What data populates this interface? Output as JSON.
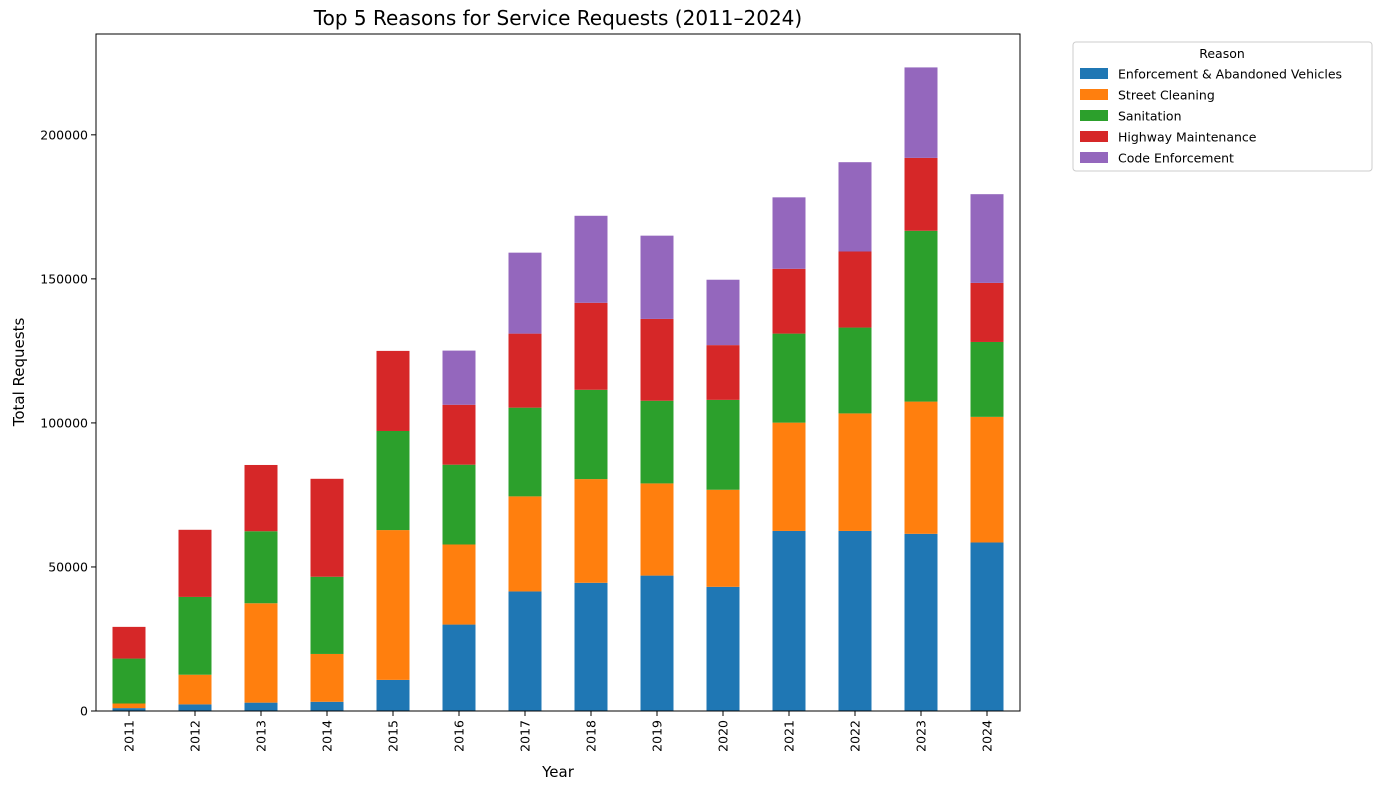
{
  "chart_data": {
    "type": "bar",
    "stacked": true,
    "title": "Top 5 Reasons for Service Requests (2011–2024)",
    "xlabel": "Year",
    "ylabel": "Total Requests",
    "ylim": [
      0,
      235000
    ],
    "yticks": [
      0,
      50000,
      100000,
      150000,
      200000
    ],
    "grid": false,
    "legend_title": "Reason",
    "legend_position": "outside-top-right",
    "categories": [
      "2011",
      "2012",
      "2013",
      "2014",
      "2015",
      "2016",
      "2017",
      "2018",
      "2019",
      "2020",
      "2021",
      "2022",
      "2023",
      "2024"
    ],
    "series": [
      {
        "name": "Enforcement & Abandoned Vehicles",
        "color": "#1f77b4",
        "values": [
          1000,
          2300,
          2900,
          3200,
          10800,
          30000,
          41500,
          44500,
          47000,
          43100,
          62500,
          62500,
          61500,
          58500
        ]
      },
      {
        "name": "Street Cleaning",
        "color": "#ff7f0e",
        "values": [
          1600,
          10300,
          34500,
          16600,
          52000,
          27800,
          33000,
          36000,
          32000,
          33700,
          37600,
          40800,
          45900,
          43600
        ]
      },
      {
        "name": "Sanitation",
        "color": "#2ca02c",
        "values": [
          15600,
          27000,
          25000,
          26800,
          34400,
          27700,
          30800,
          31000,
          28700,
          31200,
          30900,
          29800,
          59300,
          26000
        ]
      },
      {
        "name": "Highway Maintenance",
        "color": "#d62728",
        "values": [
          11000,
          23300,
          23000,
          34000,
          27800,
          20800,
          25700,
          30200,
          28400,
          19000,
          22500,
          26400,
          25300,
          20500
        ]
      },
      {
        "name": "Code Enforcement",
        "color": "#9467bd",
        "values": [
          0,
          0,
          0,
          0,
          0,
          18800,
          28100,
          30200,
          28900,
          22700,
          24800,
          31000,
          31400,
          30800
        ]
      }
    ]
  }
}
